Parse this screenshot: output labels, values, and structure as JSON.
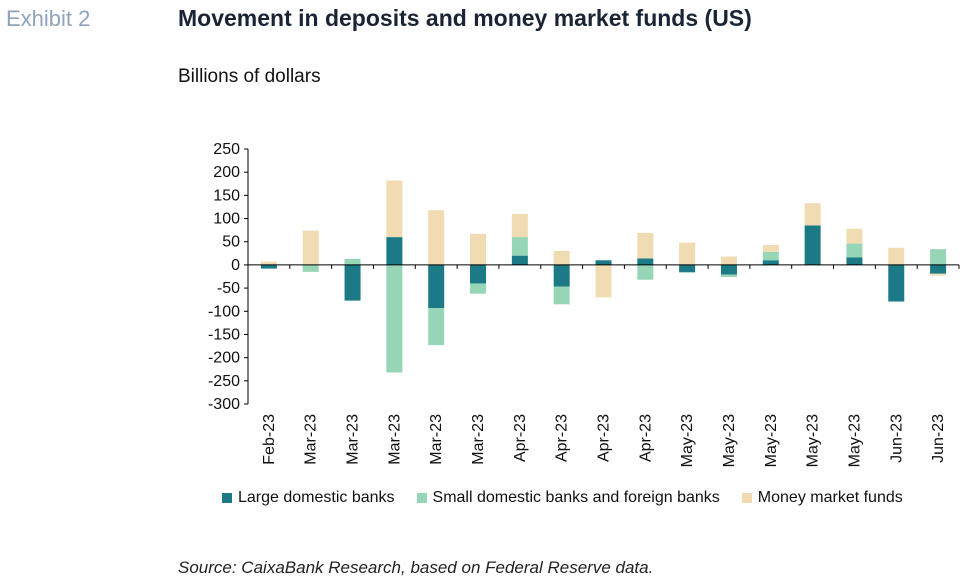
{
  "header": {
    "exhibit": "Exhibit 2",
    "title": "Movement in deposits and money market funds (US)",
    "units": "Billions of dollars"
  },
  "footer": {
    "source": "Source: CaixaBank Research, based on Federal Reserve data."
  },
  "colors": {
    "large": "#1b7a86",
    "small": "#96d6b6",
    "mmf": "#f0dbb2",
    "axis": "#000000"
  },
  "chart_data": {
    "type": "bar",
    "stacked": true,
    "ylim": [
      -300,
      250
    ],
    "yticks": [
      250,
      200,
      150,
      100,
      50,
      0,
      -50,
      -100,
      -150,
      -200,
      -250,
      -300
    ],
    "grid": false,
    "legend_position": "bottom",
    "categories": [
      "Feb-23",
      "Mar-23",
      "Mar-23",
      "Mar-23",
      "Mar-23",
      "Mar-23",
      "Apr-23",
      "Apr-23",
      "Apr-23",
      "Apr-23",
      "May-23",
      "May-23",
      "May-23",
      "May-23",
      "May-23",
      "Jun-23",
      "Jun-23"
    ],
    "series": [
      {
        "name": "Large domestic banks",
        "color_key": "large",
        "values": [
          -8,
          0,
          -77,
          60,
          -93,
          -40,
          20,
          -47,
          10,
          14,
          -16,
          -21,
          10,
          85,
          16,
          -79,
          -19
        ]
      },
      {
        "name": "Small domestic banks and foreign banks",
        "color_key": "small",
        "values": [
          0,
          -15,
          13,
          -232,
          -80,
          -22,
          40,
          -38,
          0,
          -32,
          0,
          -5,
          18,
          0,
          30,
          0,
          34
        ]
      },
      {
        "name": "Money market funds",
        "color_key": "mmf",
        "values": [
          7,
          74,
          0,
          122,
          118,
          67,
          50,
          30,
          -70,
          55,
          48,
          18,
          15,
          48,
          32,
          37,
          -4
        ]
      }
    ]
  }
}
